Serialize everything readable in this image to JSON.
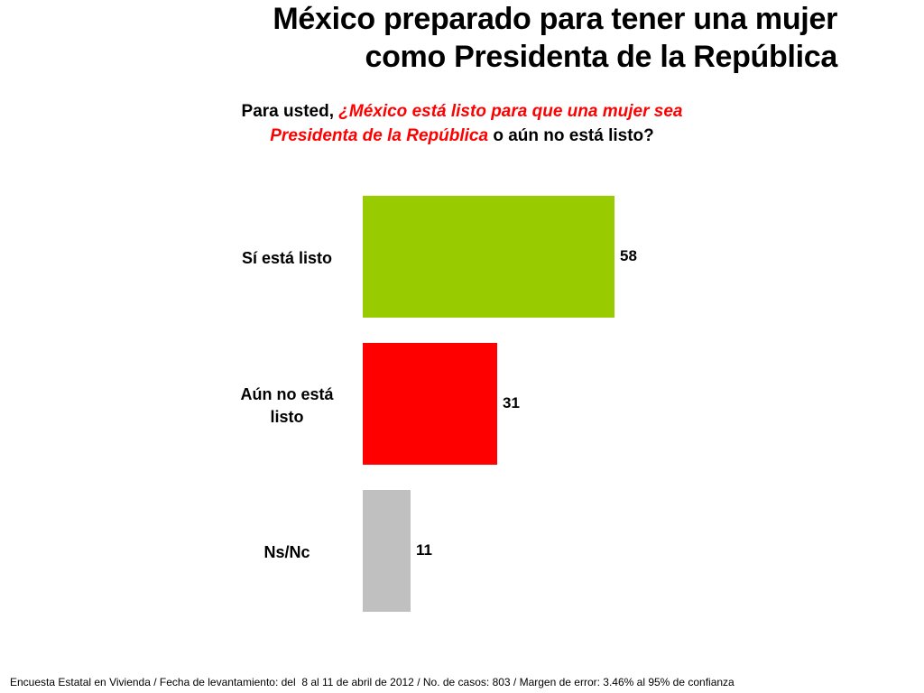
{
  "title_lines": [
    "México preparado para tener una mujer",
    "como Presidenta de la República"
  ],
  "question": {
    "prefix": "Para usted, ",
    "emphasis_line1": "¿México está listo para que una mujer sea",
    "emphasis_line2": "Presidenta de la República",
    "suffix": " o aún no está listo?"
  },
  "colors": {
    "emphasis": "#ff0000"
  },
  "chart_data": {
    "type": "bar",
    "orientation": "horizontal",
    "categories": [
      "Sí está listo",
      "Aún no está listo",
      "Ns/Nc"
    ],
    "category_lines": [
      [
        "Sí está listo"
      ],
      [
        "Aún no está",
        "listo"
      ],
      [
        "Ns/Nc"
      ]
    ],
    "values": [
      58,
      31,
      11
    ],
    "value_labels": [
      "58",
      "31",
      "11"
    ],
    "colors": [
      "#99cc00",
      "#ff0000",
      "#c0c0c0"
    ],
    "title": "",
    "xlabel": "",
    "ylabel": "",
    "grid": false,
    "legend": "none"
  },
  "footer": "Encuesta Estatal en Vivienda / Fecha de levantamiento: del  8 al 11 de abril de 2012 / No. de casos: 803 / Margen de error: 3.46% al 95% de confianza"
}
